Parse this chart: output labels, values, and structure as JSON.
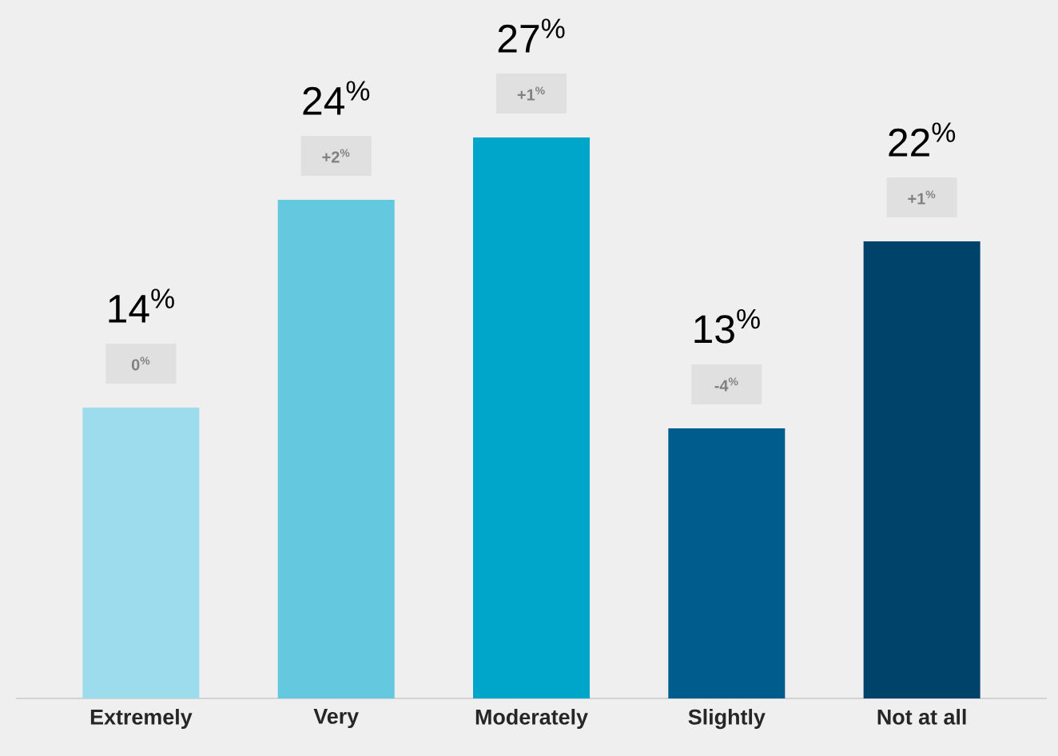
{
  "chart_data": {
    "type": "bar",
    "categories": [
      "Extremely",
      "Very",
      "Moderately",
      "Slightly",
      "Not at all"
    ],
    "values": [
      14,
      24,
      27,
      13,
      22
    ],
    "colors": [
      "#9ddcec",
      "#64c9df",
      "#00a6c9",
      "#005c8c",
      "#00436a"
    ],
    "value_labels": [
      "14$^{%}$",
      "24$^{%}$",
      "27$^{%}$",
      "13$^{%}$",
      "22$^{%}$"
    ],
    "annotations": [
      "0$^{%}$",
      "+2$^{%}$",
      "+1$^{%}$",
      "-4$^{%}$",
      "+1$^{%}$"
    ]
  }
}
